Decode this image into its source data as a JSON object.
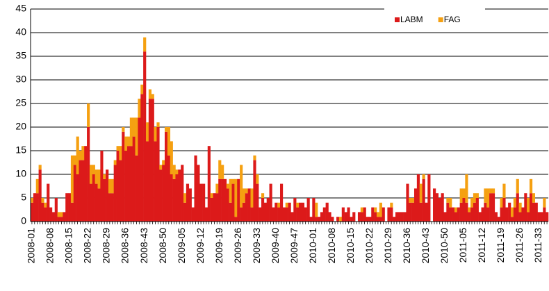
{
  "chart_data": {
    "type": "stacked-bar",
    "categories": [
      "2008-01",
      null,
      null,
      null,
      null,
      null,
      null,
      "2008-08",
      null,
      null,
      null,
      null,
      null,
      null,
      "2008-15",
      null,
      null,
      null,
      null,
      null,
      null,
      "2008-22",
      null,
      null,
      null,
      null,
      null,
      null,
      "2008-29",
      null,
      null,
      null,
      null,
      null,
      null,
      "2008-36",
      null,
      null,
      null,
      null,
      null,
      null,
      "2008-43",
      null,
      null,
      null,
      null,
      null,
      null,
      "2008-50",
      null,
      null,
      null,
      null,
      null,
      null,
      "2009-05",
      null,
      null,
      null,
      null,
      null,
      null,
      "2009-12",
      null,
      null,
      null,
      null,
      null,
      null,
      "2009-19",
      null,
      null,
      null,
      null,
      null,
      null,
      "2009-26",
      null,
      null,
      null,
      null,
      null,
      null,
      "2009-33",
      null,
      null,
      null,
      null,
      null,
      null,
      "2009-40",
      null,
      null,
      null,
      null,
      null,
      null,
      "2009-47",
      null,
      null,
      null,
      null,
      null,
      null,
      "2010-01",
      null,
      null,
      null,
      null,
      null,
      null,
      "2010-08",
      null,
      null,
      null,
      null,
      null,
      null,
      "2010-15",
      null,
      null,
      null,
      null,
      null,
      null,
      "2010-22",
      null,
      null,
      null,
      null,
      null,
      null,
      "2010-29",
      null,
      null,
      null,
      null,
      null,
      null,
      "2010-36",
      null,
      null,
      null,
      null,
      null,
      null,
      "2010-43",
      null,
      null,
      null,
      null,
      null,
      null,
      "2010-50",
      null,
      null,
      null,
      null,
      null,
      null,
      "2011-05",
      null,
      null,
      null,
      null,
      null,
      null,
      "2011-12",
      null,
      null,
      null,
      null,
      null,
      null,
      "2011-19",
      null,
      null,
      null,
      null,
      null,
      null,
      "2011-26",
      null,
      null,
      null,
      null,
      null,
      null,
      "2011-33",
      null,
      null,
      null
    ],
    "series": [
      {
        "name": "LABM",
        "color": "#dc1a1a",
        "values": [
          4,
          6,
          6,
          11,
          4,
          3,
          8,
          3,
          2,
          5,
          1,
          1,
          2,
          6,
          6,
          4,
          12,
          10,
          13,
          13,
          16,
          20,
          8,
          10,
          8,
          7,
          15,
          9,
          11,
          6,
          6,
          12,
          15,
          13,
          19,
          15,
          16,
          16,
          18,
          14,
          22,
          27,
          36,
          17,
          26,
          26,
          17,
          20,
          11,
          12,
          19,
          14,
          10,
          9,
          10,
          11,
          12,
          4,
          8,
          7,
          3,
          14,
          12,
          8,
          8,
          3,
          16,
          5,
          6,
          6,
          9,
          9,
          9,
          7,
          4,
          8,
          1,
          9,
          3,
          4,
          6,
          7,
          3,
          13,
          8,
          3,
          5,
          4,
          5,
          8,
          3,
          4,
          3,
          8,
          3,
          3,
          4,
          2,
          5,
          3,
          4,
          4,
          3,
          5,
          1,
          5,
          1,
          1,
          2,
          3,
          4,
          2,
          1,
          0,
          1,
          0,
          3,
          2,
          3,
          1,
          2,
          0,
          2,
          2,
          3,
          1,
          1,
          3,
          2,
          1,
          1,
          3,
          0,
          3,
          3,
          1,
          2,
          2,
          2,
          2,
          8,
          4,
          4,
          7,
          10,
          4,
          9,
          4,
          10,
          0,
          7,
          6,
          5,
          6,
          2,
          4,
          3,
          3,
          2,
          3,
          4,
          5,
          4,
          2,
          3,
          4,
          5,
          2,
          3,
          4,
          3,
          6,
          6,
          2,
          1,
          3,
          5,
          3,
          4,
          1,
          3,
          6,
          2,
          3,
          6,
          2,
          6,
          4,
          4,
          2,
          2,
          3,
          2
        ]
      },
      {
        "name": "FAG",
        "color": "#f5a011",
        "values": [
          1,
          0,
          3,
          1,
          1,
          1,
          0,
          0,
          0,
          0,
          1,
          1,
          0,
          0,
          0,
          10,
          2,
          8,
          2,
          3,
          0,
          5,
          4,
          2,
          3,
          4,
          0,
          1,
          0,
          3,
          3,
          1,
          1,
          3,
          1,
          3,
          2,
          6,
          4,
          8,
          4,
          2,
          3,
          4,
          2,
          1,
          3,
          1,
          1,
          1,
          1,
          6,
          7,
          3,
          1,
          0,
          0,
          2,
          0,
          0,
          0,
          0,
          0,
          0,
          0,
          0,
          0,
          1,
          0,
          2,
          4,
          3,
          0,
          1,
          5,
          1,
          8,
          0,
          9,
          3,
          1,
          0,
          4,
          1,
          2,
          0,
          1,
          0,
          0,
          0,
          0,
          0,
          1,
          0,
          0,
          1,
          0,
          0,
          0,
          1,
          0,
          0,
          0,
          0,
          0,
          0,
          3,
          0,
          0,
          0,
          0,
          0,
          0,
          0,
          0,
          1,
          0,
          0,
          0,
          0,
          0,
          0,
          0,
          1,
          0,
          0,
          0,
          0,
          1,
          1,
          3,
          0,
          0,
          0,
          1,
          0,
          0,
          0,
          0,
          0,
          0,
          1,
          1,
          0,
          0,
          4,
          1,
          0,
          0,
          0,
          0,
          0,
          0,
          0,
          0,
          1,
          2,
          0,
          1,
          0,
          3,
          2,
          6,
          1,
          2,
          2,
          1,
          0,
          0,
          3,
          4,
          1,
          1,
          0,
          0,
          2,
          3,
          0,
          0,
          2,
          2,
          3,
          2,
          0,
          0,
          3,
          3,
          2,
          0,
          0,
          0,
          2,
          0
        ]
      }
    ],
    "ylim": [
      0,
      45
    ],
    "yticks": [
      0,
      5,
      10,
      15,
      20,
      25,
      30,
      35,
      40,
      45
    ],
    "grid": true,
    "legend": "top-right"
  }
}
